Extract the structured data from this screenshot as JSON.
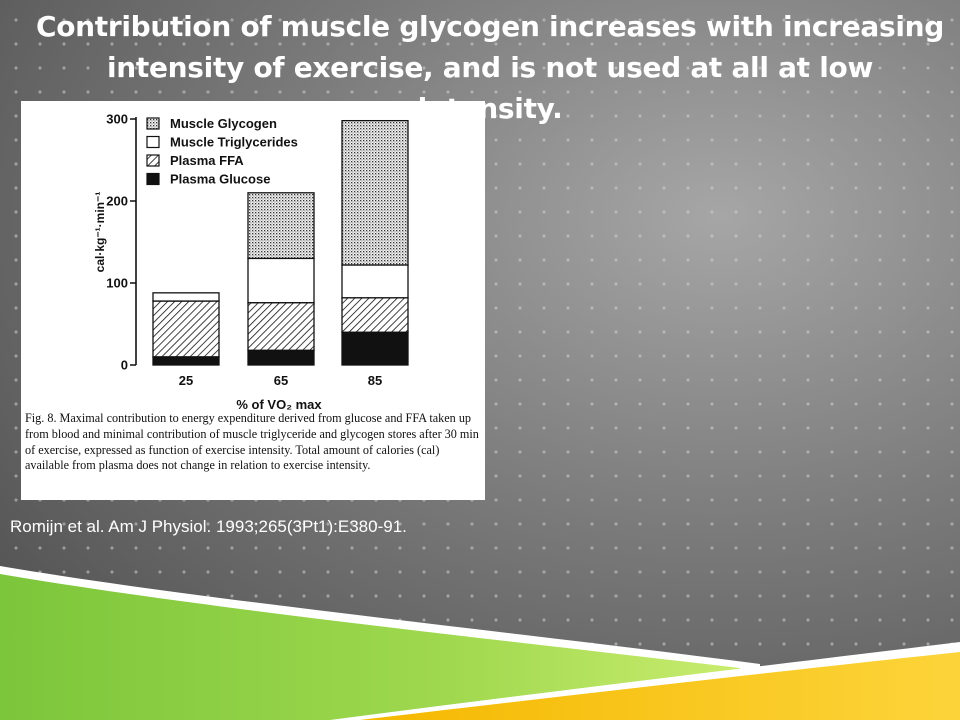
{
  "slide": {
    "title": "Contribution of muscle glycogen increases with increasing intensity of exercise, and is not used at all at low intensity.",
    "citation": "Romijn et al. Am J Physiol. 1993;265(3Pt1):E380-91."
  },
  "figure": {
    "caption_label": "Fig. 8.",
    "caption_text": "Maximal contribution to energy expenditure derived from glucose and FFA taken up from blood and minimal contribution of muscle triglyceride and glycogen stores after 30 min of exercise, expressed as function of exercise intensity. Total amount of calories (cal) available from plasma does not change in relation to exercise intensity."
  },
  "chart_data": {
    "type": "bar",
    "stacked": true,
    "categories": [
      "25",
      "65",
      "85"
    ],
    "xlabel": "% of VO₂ max",
    "ylabel": "cal·kg⁻¹·min⁻¹",
    "ylim": [
      0,
      300
    ],
    "yticks": [
      0,
      100,
      200,
      300
    ],
    "legend_position": "top-left",
    "series": [
      {
        "name": "Plasma Glucose",
        "values": [
          10,
          18,
          40
        ],
        "pattern": "solid"
      },
      {
        "name": "Plasma FFA",
        "values": [
          68,
          58,
          42
        ],
        "pattern": "hatch"
      },
      {
        "name": "Muscle Triglycerides",
        "values": [
          10,
          54,
          40
        ],
        "pattern": "white"
      },
      {
        "name": "Muscle Glycogen",
        "values": [
          0,
          80,
          176
        ],
        "pattern": "stipple"
      }
    ],
    "legend_order": [
      "Muscle Glycogen",
      "Muscle Triglycerides",
      "Plasma FFA",
      "Plasma Glucose"
    ]
  }
}
